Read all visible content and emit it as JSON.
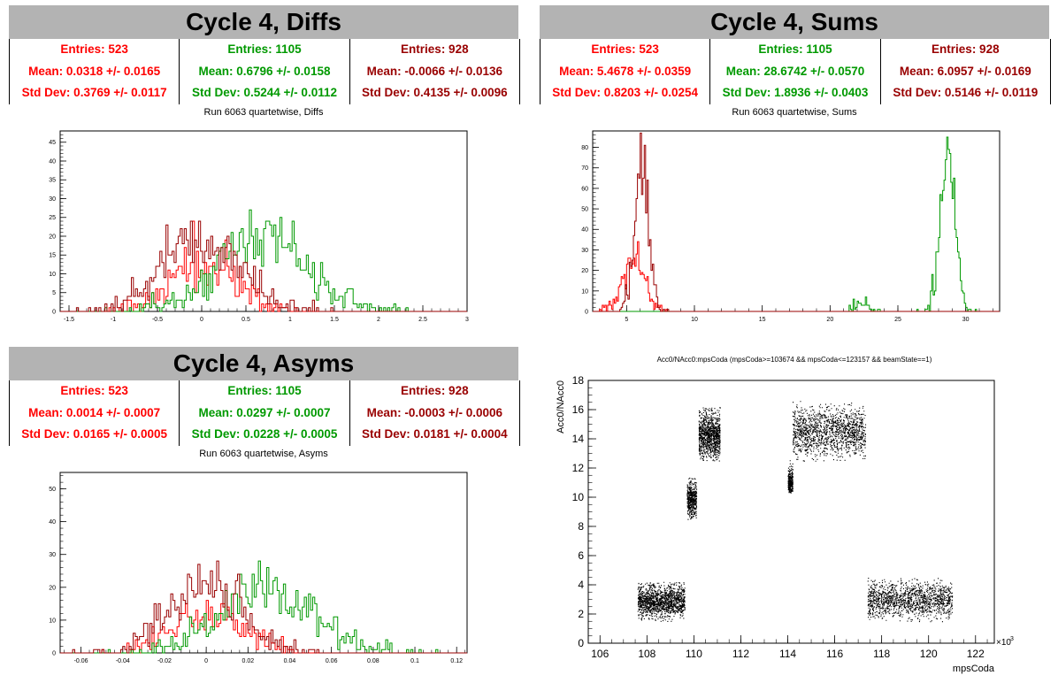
{
  "colors": {
    "red": "#ff0000",
    "green": "#009900",
    "darkred": "#990000"
  },
  "panels": [
    {
      "title": "Cycle 4, Diffs",
      "subtitle": "Run 6063 quartetwise, Diffs",
      "stats": [
        {
          "entries": "Entries: 523",
          "mean": "Mean: 0.0318 +/- 0.0165",
          "std": "Std Dev: 0.3769 +/- 0.0117"
        },
        {
          "entries": "Entries: 1105",
          "mean": "Mean: 0.6796 +/- 0.0158",
          "std": "Std Dev: 0.5244 +/- 0.0112"
        },
        {
          "entries": "Entries: 928",
          "mean": "Mean: -0.0066 +/- 0.0136",
          "std": "Std Dev: 0.4135 +/- 0.0096"
        }
      ]
    },
    {
      "title": "Cycle 4, Sums",
      "subtitle": "Run 6063 quartetwise, Sums",
      "stats": [
        {
          "entries": "Entries: 523",
          "mean": "Mean: 5.4678 +/- 0.0359",
          "std": "Std Dev: 0.8203 +/- 0.0254"
        },
        {
          "entries": "Entries: 1105",
          "mean": "Mean: 28.6742 +/- 0.0570",
          "std": "Std Dev: 1.8936 +/- 0.0403"
        },
        {
          "entries": "Entries: 928",
          "mean": "Mean: 6.0957 +/- 0.0169",
          "std": "Std Dev: 0.5146 +/- 0.0119"
        }
      ]
    },
    {
      "title": "Cycle 4, Asyms",
      "subtitle": "Run 6063 quartetwise, Asyms",
      "stats": [
        {
          "entries": "Entries: 523",
          "mean": "Mean: 0.0014 +/- 0.0007",
          "std": "Std Dev: 0.0165 +/- 0.0005"
        },
        {
          "entries": "Entries: 1105",
          "mean": "Mean: 0.0297 +/- 0.0007",
          "std": "Std Dev: 0.0228 +/- 0.0005"
        },
        {
          "entries": "Entries: 928",
          "mean": "Mean: -0.0003 +/- 0.0006",
          "std": "Std Dev: 0.0181 +/- 0.0004"
        }
      ]
    }
  ],
  "chart_data": [
    {
      "type": "histogram",
      "xlim": [
        -1.6,
        3.0
      ],
      "ylim": [
        0,
        48
      ],
      "xticks": [
        -1.5,
        -1,
        -0.5,
        0,
        0.5,
        1,
        1.5,
        2,
        2.5,
        3
      ],
      "xtick_labels": [
        "-1.5",
        "-1",
        "-0.5",
        "0",
        "0.5",
        "1",
        "1.5",
        "2",
        "2.5",
        "3"
      ],
      "yticks": [
        0,
        5,
        10,
        15,
        20,
        25,
        30,
        35,
        40,
        45
      ],
      "ytick_labels": [
        "0",
        "5",
        "10",
        "15",
        "20",
        "25",
        "30",
        "35",
        "40",
        "45"
      ],
      "grid": false,
      "series": [
        {
          "color_key": "red",
          "entries": 523,
          "mean": 0.0318,
          "std": 0.3769
        },
        {
          "color_key": "green",
          "entries": 1105,
          "mean": 0.6796,
          "std": 0.5244
        },
        {
          "color_key": "darkred",
          "entries": 928,
          "mean": -0.0066,
          "std": 0.4135
        }
      ]
    },
    {
      "type": "histogram",
      "xlim": [
        2.5,
        32.5
      ],
      "ylim": [
        0,
        88
      ],
      "xticks": [
        5,
        10,
        15,
        20,
        25,
        30
      ],
      "xtick_labels": [
        "5",
        "10",
        "15",
        "20",
        "25",
        "30"
      ],
      "yticks": [
        0,
        10,
        20,
        30,
        40,
        50,
        60,
        70,
        80
      ],
      "ytick_labels": [
        "0",
        "10",
        "20",
        "30",
        "40",
        "50",
        "60",
        "70",
        "80"
      ],
      "grid": false,
      "series": [
        {
          "color_key": "red",
          "entries": 523,
          "mean": 5.4678,
          "std": 0.8203
        },
        {
          "color_key": "green",
          "entries": 1105,
          "mean": 28.6742,
          "std": 1.8936
        },
        {
          "color_key": "darkred",
          "entries": 928,
          "mean": 6.0957,
          "std": 0.5146
        }
      ]
    },
    {
      "type": "histogram",
      "xlim": [
        -0.07,
        0.125
      ],
      "ylim": [
        0,
        55
      ],
      "xticks": [
        -0.06,
        -0.04,
        -0.02,
        0,
        0.02,
        0.04,
        0.06,
        0.08,
        0.1,
        0.12
      ],
      "xtick_labels": [
        "-0.06",
        "-0.04",
        "-0.02",
        "0",
        "0.02",
        "0.04",
        "0.06",
        "0.08",
        "0.1",
        "0.12"
      ],
      "yticks": [
        0,
        10,
        20,
        30,
        40,
        50
      ],
      "ytick_labels": [
        "0",
        "10",
        "20",
        "30",
        "40",
        "50"
      ],
      "grid": false,
      "series": [
        {
          "color_key": "red",
          "entries": 523,
          "mean": 0.0014,
          "std": 0.0165
        },
        {
          "color_key": "green",
          "entries": 1105,
          "mean": 0.0297,
          "std": 0.0228
        },
        {
          "color_key": "darkred",
          "entries": 928,
          "mean": -0.0003,
          "std": 0.0181
        }
      ]
    },
    {
      "type": "scatter",
      "title": "Acc0/NAcc0:mpsCoda (mpsCoda>=103674 && mpsCoda<=123157 && beamState==1)",
      "xlabel": "mpsCoda",
      "ylabel": "Acc0/NAcc0",
      "x_multiplier_label": "×10",
      "x_multiplier_exp": "3",
      "xlim": [
        105.5,
        122.8
      ],
      "ylim": [
        0,
        18
      ],
      "xticks": [
        106,
        108,
        110,
        112,
        114,
        116,
        118,
        120,
        122
      ],
      "xtick_labels": [
        "106",
        "108",
        "110",
        "112",
        "114",
        "116",
        "118",
        "120",
        "122"
      ],
      "yticks": [
        0,
        2,
        4,
        6,
        8,
        10,
        12,
        14,
        16,
        18
      ],
      "ytick_labels": [
        "0",
        "2",
        "4",
        "6",
        "8",
        "10",
        "12",
        "14",
        "16",
        "18"
      ],
      "clusters": [
        {
          "x": [
            107.6,
            109.6
          ],
          "y": [
            1.5,
            4.2
          ],
          "center": 2.9
        },
        {
          "x": [
            109.7,
            110.1
          ],
          "y": [
            8.5,
            11.5
          ],
          "center": 9.9
        },
        {
          "x": [
            110.2,
            111.1
          ],
          "y": [
            12.5,
            16.2
          ],
          "center": 14.2
        },
        {
          "x": [
            114.0,
            114.2
          ],
          "y": [
            10.3,
            12.6
          ],
          "center": 11.1
        },
        {
          "x": [
            114.2,
            117.3
          ],
          "y": [
            12.5,
            16.6
          ],
          "center": 14.5
        },
        {
          "x": [
            117.4,
            121.0
          ],
          "y": [
            1.5,
            4.5
          ],
          "center": 3.0
        }
      ]
    }
  ]
}
